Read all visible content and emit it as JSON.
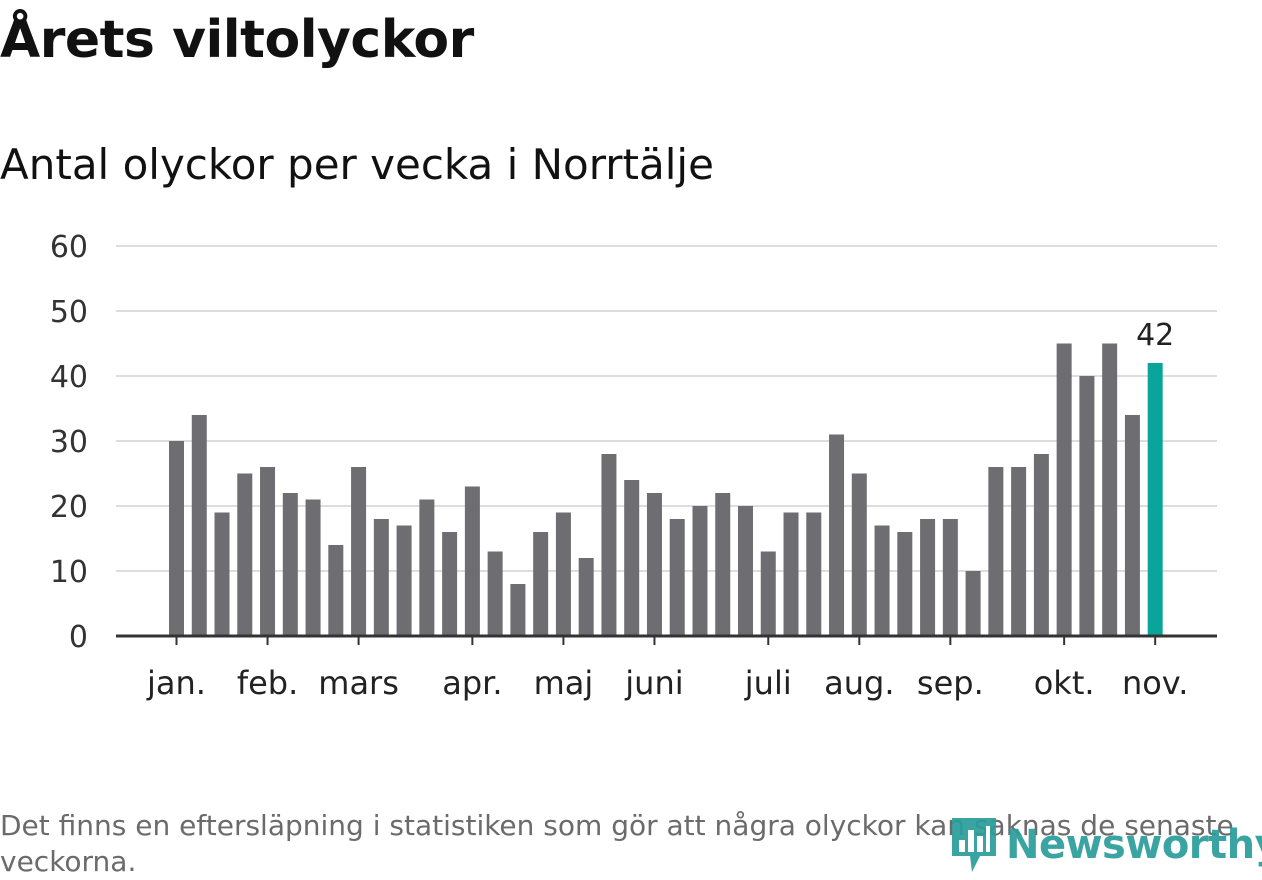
{
  "header": {
    "title": "Årets viltolyckor",
    "subtitle": "Antal olyckor per vecka i Norrtälje"
  },
  "footer": {
    "note": "Det finns en eftersläpning i statistiken som gör att några olyckor kan saknas de senaste veckorna.",
    "brand": "Newsworthy"
  },
  "colors": {
    "bar": "#6e6d72",
    "highlight": "#0aa59a",
    "grid": "#dddddd",
    "axis": "#333333",
    "brand": "#2a9d9b"
  },
  "chart_data": {
    "type": "bar",
    "title": "Antal olyckor per vecka i Norrtälje",
    "xlabel": "",
    "ylabel": "",
    "ylim": [
      0,
      60
    ],
    "yticks": [
      0,
      10,
      20,
      30,
      40,
      50,
      60
    ],
    "grid": true,
    "values": [
      30,
      34,
      19,
      25,
      26,
      22,
      21,
      14,
      26,
      18,
      17,
      21,
      16,
      23,
      13,
      8,
      16,
      19,
      12,
      28,
      24,
      22,
      18,
      20,
      22,
      20,
      13,
      19,
      19,
      31,
      25,
      17,
      16,
      18,
      18,
      10,
      26,
      26,
      28,
      45,
      40,
      45,
      34,
      42
    ],
    "highlight_index": 43,
    "highlight_label": "42",
    "month_labels": [
      {
        "label": "jan.",
        "bar_index": 0
      },
      {
        "label": "feb.",
        "bar_index": 4
      },
      {
        "label": "mars",
        "bar_index": 8
      },
      {
        "label": "apr.",
        "bar_index": 13
      },
      {
        "label": "maj",
        "bar_index": 17
      },
      {
        "label": "juni",
        "bar_index": 21
      },
      {
        "label": "juli",
        "bar_index": 26
      },
      {
        "label": "aug.",
        "bar_index": 30
      },
      {
        "label": "sep.",
        "bar_index": 34
      },
      {
        "label": "okt.",
        "bar_index": 39
      },
      {
        "label": "nov.",
        "bar_index": 43
      }
    ]
  }
}
